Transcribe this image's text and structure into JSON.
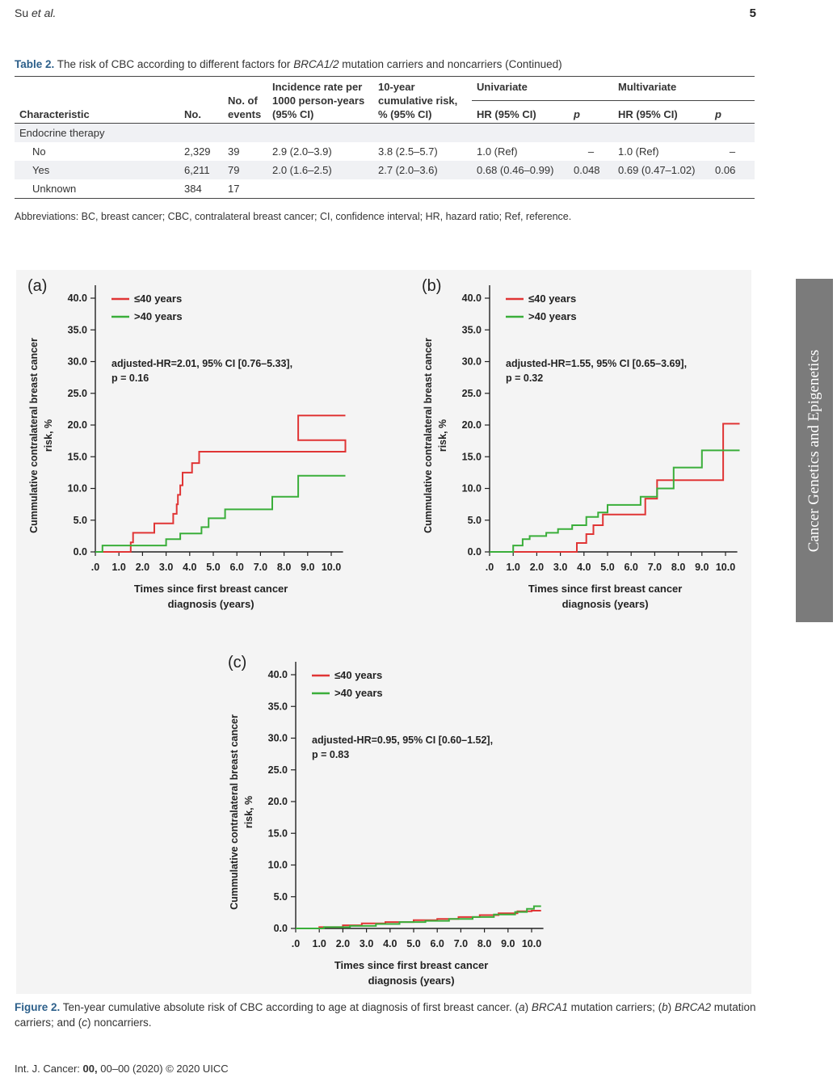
{
  "page": {
    "header_author": "Su",
    "header_etal": "et al.",
    "page_number": "5",
    "footer_journal": "Int. J. Cancer:",
    "footer_vol": "00,",
    "footer_rest": "00–00 (2020) © 2020 UICC",
    "sidebar_text": "Cancer Genetics and Epigenetics"
  },
  "table": {
    "label": "Table 2.",
    "caption_pre": "The risk of CBC according to different factors for",
    "caption_em": "BRCA1/2",
    "caption_post": "mutation carriers and noncarriers (Continued)",
    "headers": {
      "characteristic": "Characteristic",
      "no": "No.",
      "events": "No. of events",
      "incidence": "Incidence rate per 1000 person-years (95% CI)",
      "cumrisk": "10-year cumulative risk, % (95% CI)",
      "univariate": "Univariate",
      "multivariate": "Multivariate",
      "hr": "HR (95% CI)",
      "p": "p"
    },
    "group": "Endocrine therapy",
    "rows": [
      {
        "label": "No",
        "no": "2,329",
        "events": "39",
        "incidence": "2.9 (2.0–3.9)",
        "cumrisk": "3.8 (2.5–5.7)",
        "uni_hr": "1.0 (Ref)",
        "uni_p": "–",
        "multi_hr": "1.0 (Ref)",
        "multi_p": "–"
      },
      {
        "label": "Yes",
        "no": "6,211",
        "events": "79",
        "incidence": "2.0 (1.6–2.5)",
        "cumrisk": "2.7 (2.0–3.6)",
        "uni_hr": "0.68 (0.46–0.99)",
        "uni_p": "0.048",
        "multi_hr": "0.69 (0.47–1.02)",
        "multi_p": "0.06"
      },
      {
        "label": "Unknown",
        "no": "384",
        "events": "17",
        "incidence": "",
        "cumrisk": "",
        "uni_hr": "",
        "uni_p": "",
        "multi_hr": "",
        "multi_p": ""
      }
    ],
    "abbreviations": "Abbreviations: BC, breast cancer; CBC, contralateral breast cancer; CI, confidence interval; HR, hazard ratio; Ref, reference."
  },
  "figure": {
    "label": "Figure 2.",
    "caption_1": "Ten-year cumulative absolute risk of CBC according to age at diagnosis of first breast cancer. (",
    "a_letter": "a",
    "caption_2": ")",
    "brca1": "BRCA1",
    "caption_3": "mutation carriers; (",
    "b_letter": "b",
    "caption_4": ")",
    "brca2": "BRCA2",
    "caption_5": "mutation carriers; and (",
    "c_letter": "c",
    "caption_6": ") noncarriers."
  },
  "chart_data": [
    {
      "type": "line",
      "panel": "(a)",
      "title": "",
      "xlabel": "Times since first breast cancer diagnosis (years)",
      "ylabel": "Cummulative contralateral breast cancer risk, %",
      "xlim": [
        0,
        10.5
      ],
      "ylim": [
        0,
        40
      ],
      "xticks": [
        ".0",
        "1.0",
        "2.0",
        "3.0",
        "4.0",
        "5.0",
        "6.0",
        "7.0",
        "8.0",
        "9.0",
        "10.0"
      ],
      "yticks": [
        "0.0",
        "5.0",
        "10.0",
        "15.0",
        "20.0",
        "25.0",
        "30.0",
        "35.0",
        "40.0"
      ],
      "legend": [
        "≤40 years",
        ">40 years"
      ],
      "colors": [
        "#e03535",
        "#3aae3a"
      ],
      "annotation_1": "adjusted-HR=2.01, 95% CI [0.76–5.33],",
      "annotation_2": "p = 0.16",
      "series": [
        {
          "name": "≤40 years",
          "step": true,
          "x": [
            0,
            1.5,
            1.5,
            1.6,
            2.5,
            3.3,
            3.45,
            3.5,
            3.6,
            3.7,
            4.1,
            4.4,
            11.0
          ],
          "y": [
            0,
            0,
            1.5,
            3.0,
            4.5,
            6.0,
            7.5,
            9.0,
            10.5,
            12.5,
            14.0,
            15.8,
            17.6
          ],
          "extra": [
            [
              8.6,
              21.5
            ],
            [
              10.6,
              21.5
            ]
          ]
        },
        {
          "name": ">40 years",
          "step": true,
          "x": [
            0,
            0.3,
            1.4,
            3.0,
            3.6,
            4.5,
            4.8,
            5.5,
            7.5,
            8.6
          ],
          "y": [
            0,
            1.0,
            1.0,
            2.0,
            2.9,
            3.9,
            5.3,
            6.7,
            8.7,
            12.0
          ],
          "end": 10.6
        }
      ]
    },
    {
      "type": "line",
      "panel": "(b)",
      "title": "",
      "xlabel": "Times since first breast cancer diagnosis (years)",
      "ylabel": "Cummulative contralateral breast cancer risk, %",
      "xlim": [
        0,
        10.5
      ],
      "ylim": [
        0,
        40
      ],
      "xticks": [
        ".0",
        "1.0",
        "2.0",
        "3.0",
        "4.0",
        "5.0",
        "6.0",
        "7.0",
        "8.0",
        "9.0",
        "10.0"
      ],
      "yticks": [
        "0.0",
        "5.0",
        "10.0",
        "15.0",
        "20.0",
        "25.0",
        "30.0",
        "35.0",
        "40.0"
      ],
      "legend": [
        "≤40 years",
        ">40 years"
      ],
      "colors": [
        "#e03535",
        "#3aae3a"
      ],
      "annotation_1": "adjusted-HR=1.55, 95% CI [0.65–3.69],",
      "annotation_2": "p = 0.32",
      "series": [
        {
          "name": "≤40 years",
          "x": [
            0,
            3.7,
            4.1,
            4.4,
            4.8,
            6.6,
            7.1,
            9.9,
            10.6
          ],
          "y": [
            0,
            1.4,
            2.8,
            4.2,
            5.9,
            8.4,
            11.3,
            20.2,
            20.2
          ]
        },
        {
          "name": ">40 years",
          "x": [
            0,
            1.0,
            1.4,
            1.7,
            2.4,
            2.9,
            3.5,
            4.1,
            4.6,
            5.0,
            5.4,
            6.4,
            7.1,
            7.8,
            9.0,
            10.6
          ],
          "y": [
            0,
            1.0,
            2.0,
            2.5,
            3.0,
            3.6,
            4.2,
            5.5,
            6.2,
            7.4,
            7.4,
            8.7,
            10.0,
            13.3,
            16.0,
            16.0
          ]
        }
      ]
    },
    {
      "type": "line",
      "panel": "(c)",
      "title": "",
      "xlabel": "Times since first breast cancer diagnosis (years)",
      "ylabel": "Cummulative contralateral breast cancer risk, %",
      "xlim": [
        0,
        10.5
      ],
      "ylim": [
        0,
        40
      ],
      "xticks": [
        ".0",
        "1.0",
        "2.0",
        "3.0",
        "4.0",
        "5.0",
        "6.0",
        "7.0",
        "8.0",
        "9.0",
        "10.0"
      ],
      "yticks": [
        "0.0",
        "5.0",
        "10.0",
        "15.0",
        "20.0",
        "25.0",
        "30.0",
        "35.0",
        "40.0"
      ],
      "legend": [
        "≤40 years",
        ">40 years"
      ],
      "colors": [
        "#e03535",
        "#3aae3a"
      ],
      "annotation_1": "adjusted-HR=0.95, 95% CI [0.60–1.52],",
      "annotation_2": "p = 0.83",
      "series": [
        {
          "name": "≤40 years",
          "x": [
            0,
            1.0,
            2.0,
            2.8,
            3.8,
            5.0,
            6.0,
            6.9,
            7.8,
            8.6,
            9.4,
            10.0,
            10.4
          ],
          "y": [
            0,
            0.2,
            0.5,
            0.8,
            1.0,
            1.3,
            1.5,
            1.8,
            2.1,
            2.4,
            2.7,
            2.8,
            2.8
          ]
        },
        {
          "name": ">40 years",
          "x": [
            0,
            1.2,
            2.3,
            3.4,
            4.4,
            5.5,
            6.5,
            7.5,
            8.4,
            9.3,
            9.8,
            10.1,
            10.4
          ],
          "y": [
            0,
            0.2,
            0.4,
            0.7,
            1.0,
            1.2,
            1.5,
            1.8,
            2.2,
            2.6,
            3.1,
            3.5,
            3.5
          ]
        }
      ]
    }
  ]
}
